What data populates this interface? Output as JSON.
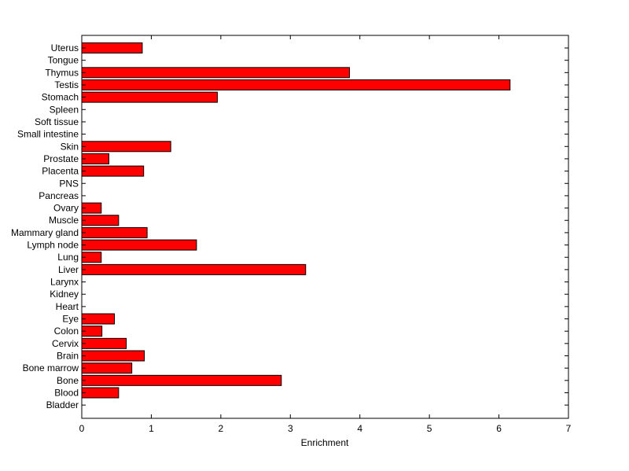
{
  "chart_data": {
    "type": "bar",
    "orientation": "horizontal",
    "title": "",
    "xlabel": "Enrichment",
    "ylabel": "",
    "xlim": [
      0,
      7
    ],
    "xticks": [
      0,
      1,
      2,
      3,
      4,
      5,
      6,
      7
    ],
    "grid": false,
    "legend": "none",
    "bar_color": "#ff0000",
    "bar_edge_color": "#000000",
    "categories": [
      "Uterus",
      "Tongue",
      "Thymus",
      "Testis",
      "Stomach",
      "Spleen",
      "Soft tissue",
      "Small intestine",
      "Skin",
      "Prostate",
      "Placenta",
      "PNS",
      "Pancreas",
      "Ovary",
      "Muscle",
      "Mammary gland",
      "Lymph node",
      "Lung",
      "Liver",
      "Larynx",
      "Kidney",
      "Heart",
      "Eye",
      "Colon",
      "Cervix",
      "Brain",
      "Bone marrow",
      "Bone",
      "Blood",
      "Bladder"
    ],
    "values": [
      0.87,
      0,
      3.85,
      6.16,
      1.95,
      0,
      0,
      0,
      1.28,
      0.39,
      0.89,
      0,
      0,
      0.28,
      0.53,
      0.94,
      1.65,
      0.28,
      3.22,
      0,
      0,
      0,
      0.47,
      0.29,
      0.64,
      0.9,
      0.72,
      2.87,
      0.53,
      0
    ]
  }
}
